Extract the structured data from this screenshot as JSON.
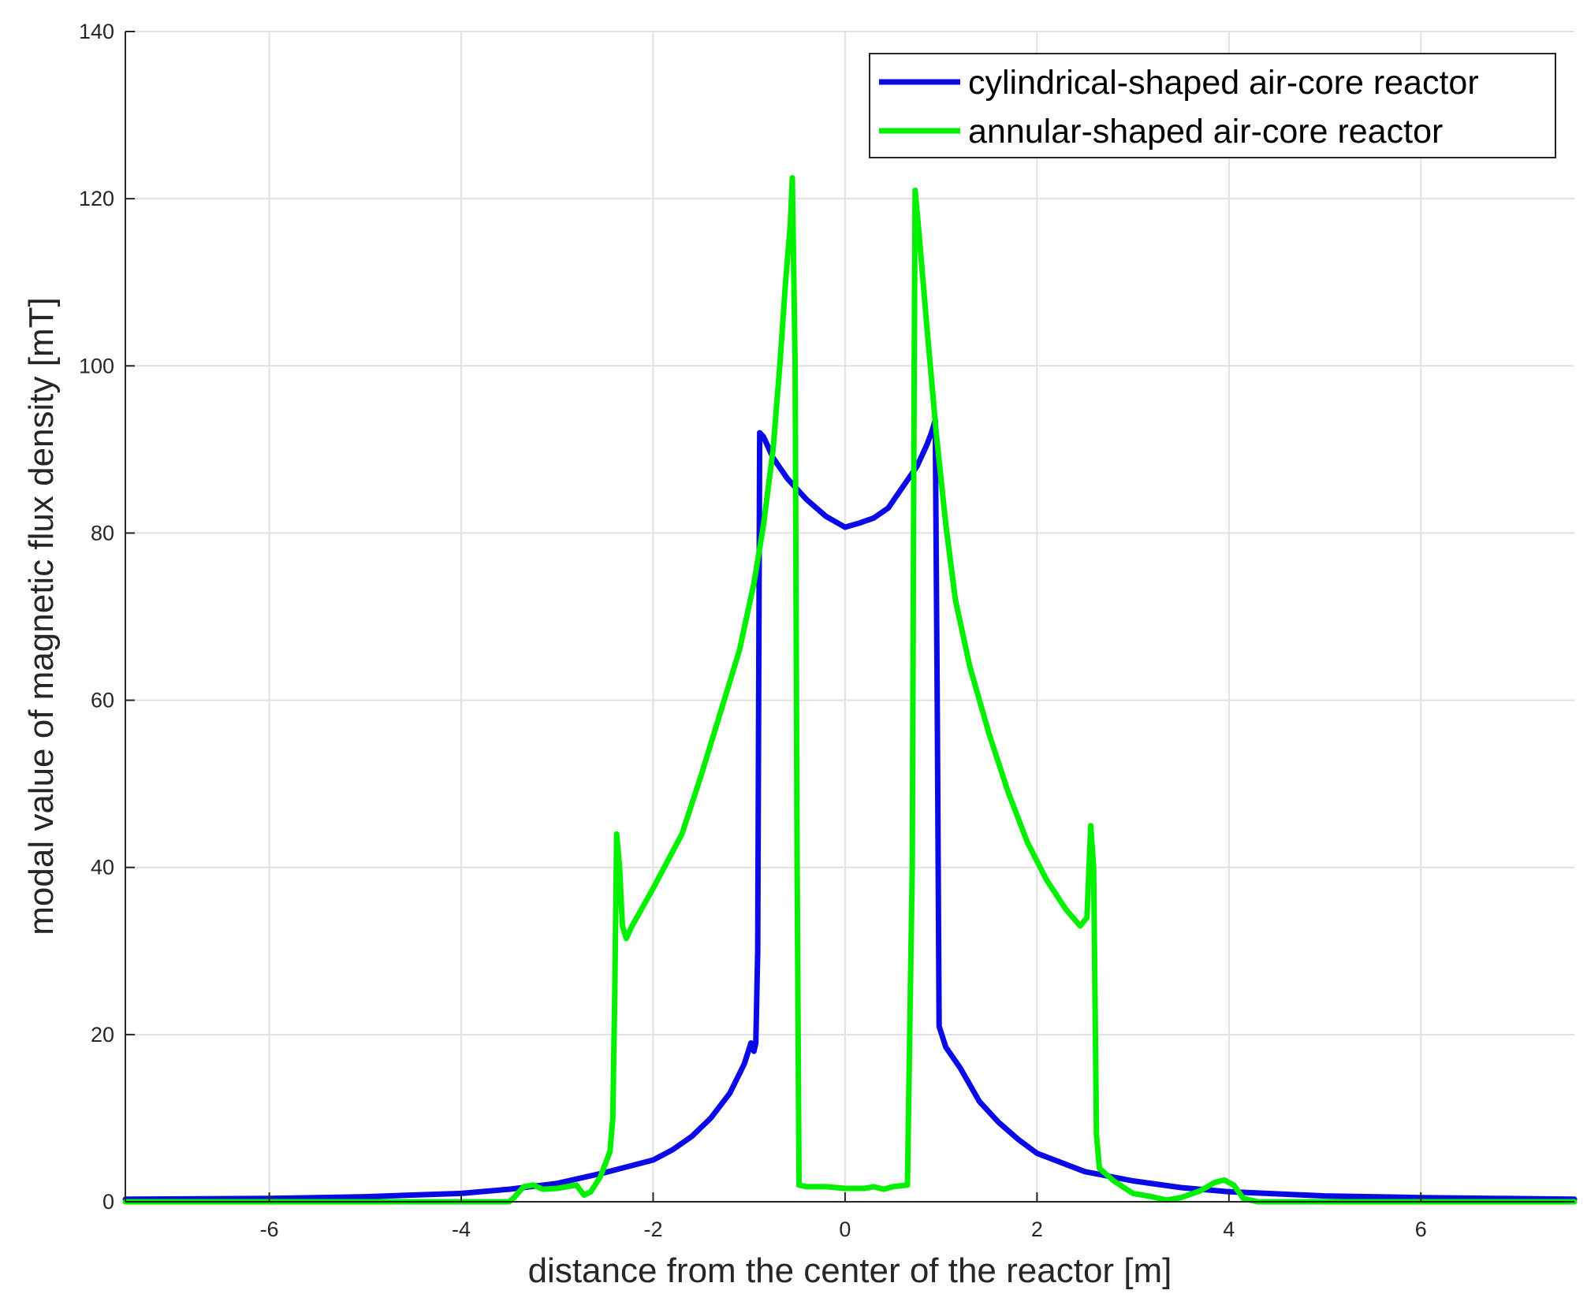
{
  "chart_data": {
    "type": "line",
    "xlabel": "distance from the center of the reactor [m]",
    "ylabel": "modal value of magnetic flux density [mT]",
    "xlim": [
      -7.5,
      7.6
    ],
    "ylim": [
      0,
      140
    ],
    "xticks": [
      -6,
      -4,
      -2,
      0,
      2,
      4,
      6
    ],
    "yticks": [
      0,
      20,
      40,
      60,
      80,
      100,
      120,
      140
    ],
    "grid": true,
    "legend_position": "top-right",
    "series": [
      {
        "name": "cylindrical-shaped air-core reactor",
        "color": "#0a0ae6",
        "points": [
          [
            -7.5,
            0.3
          ],
          [
            -6,
            0.4
          ],
          [
            -5,
            0.6
          ],
          [
            -4,
            1.0
          ],
          [
            -3.5,
            1.5
          ],
          [
            -3,
            2.2
          ],
          [
            -2.5,
            3.5
          ],
          [
            -2,
            5.0
          ],
          [
            -1.8,
            6.2
          ],
          [
            -1.6,
            7.8
          ],
          [
            -1.4,
            10.0
          ],
          [
            -1.2,
            13.0
          ],
          [
            -1.05,
            16.5
          ],
          [
            -0.98,
            19.0
          ],
          [
            -0.95,
            18.0
          ],
          [
            -0.93,
            19.0
          ],
          [
            -0.91,
            30.0
          ],
          [
            -0.89,
            92.0
          ],
          [
            -0.85,
            91.5
          ],
          [
            -0.75,
            89.0
          ],
          [
            -0.6,
            86.5
          ],
          [
            -0.4,
            84.0
          ],
          [
            -0.2,
            82.0
          ],
          [
            0,
            80.7
          ],
          [
            0.15,
            81.2
          ],
          [
            0.3,
            81.8
          ],
          [
            0.45,
            83.0
          ],
          [
            0.6,
            85.5
          ],
          [
            0.75,
            88.0
          ],
          [
            0.85,
            90.5
          ],
          [
            0.9,
            92.0
          ],
          [
            0.94,
            93.5
          ],
          [
            0.96,
            60.0
          ],
          [
            0.98,
            21.0
          ],
          [
            1.05,
            18.5
          ],
          [
            1.2,
            16.0
          ],
          [
            1.4,
            12.0
          ],
          [
            1.6,
            9.5
          ],
          [
            1.8,
            7.5
          ],
          [
            2,
            5.8
          ],
          [
            2.5,
            3.6
          ],
          [
            3,
            2.5
          ],
          [
            3.5,
            1.7
          ],
          [
            4,
            1.2
          ],
          [
            5,
            0.7
          ],
          [
            6,
            0.5
          ],
          [
            7.6,
            0.3
          ]
        ]
      },
      {
        "name": "annular-shaped air-core reactor",
        "color": "#00f000",
        "points": [
          [
            -7.5,
            0
          ],
          [
            -4,
            0
          ],
          [
            -3.5,
            0
          ],
          [
            -3.45,
            0.5
          ],
          [
            -3.35,
            1.8
          ],
          [
            -3.25,
            2.0
          ],
          [
            -3.15,
            1.5
          ],
          [
            -3.0,
            1.6
          ],
          [
            -2.8,
            2.0
          ],
          [
            -2.72,
            0.8
          ],
          [
            -2.65,
            1.2
          ],
          [
            -2.55,
            3.0
          ],
          [
            -2.45,
            6.0
          ],
          [
            -2.42,
            10.0
          ],
          [
            -2.4,
            25.0
          ],
          [
            -2.38,
            44.0
          ],
          [
            -2.35,
            40.0
          ],
          [
            -2.32,
            33.0
          ],
          [
            -2.28,
            31.5
          ],
          [
            -2.22,
            33.0
          ],
          [
            -2.0,
            37.5
          ],
          [
            -1.7,
            44.0
          ],
          [
            -1.5,
            51.0
          ],
          [
            -1.3,
            58.5
          ],
          [
            -1.1,
            66.0
          ],
          [
            -0.95,
            74.0
          ],
          [
            -0.85,
            81.0
          ],
          [
            -0.75,
            90.0
          ],
          [
            -0.68,
            100.0
          ],
          [
            -0.62,
            110.0
          ],
          [
            -0.57,
            117.0
          ],
          [
            -0.55,
            122.5
          ],
          [
            -0.52,
            100.0
          ],
          [
            -0.5,
            40.0
          ],
          [
            -0.48,
            2.0
          ],
          [
            -0.4,
            1.8
          ],
          [
            -0.2,
            1.8
          ],
          [
            0,
            1.6
          ],
          [
            0.2,
            1.6
          ],
          [
            0.3,
            1.8
          ],
          [
            0.4,
            1.5
          ],
          [
            0.5,
            1.8
          ],
          [
            0.65,
            2.0
          ],
          [
            0.7,
            40.0
          ],
          [
            0.72,
            100.0
          ],
          [
            0.73,
            121.0
          ],
          [
            0.77,
            116.0
          ],
          [
            0.85,
            105.0
          ],
          [
            0.95,
            92.0
          ],
          [
            1.05,
            81.0
          ],
          [
            1.15,
            72.0
          ],
          [
            1.3,
            64.0
          ],
          [
            1.5,
            56.0
          ],
          [
            1.7,
            49.0
          ],
          [
            1.9,
            43.0
          ],
          [
            2.1,
            38.5
          ],
          [
            2.3,
            35.0
          ],
          [
            2.45,
            33.0
          ],
          [
            2.52,
            34.0
          ],
          [
            2.56,
            45.0
          ],
          [
            2.59,
            40.0
          ],
          [
            2.62,
            8.0
          ],
          [
            2.65,
            4.0
          ],
          [
            2.8,
            2.5
          ],
          [
            3.0,
            1.0
          ],
          [
            3.2,
            0.6
          ],
          [
            3.35,
            0.2
          ],
          [
            3.5,
            0.5
          ],
          [
            3.7,
            1.3
          ],
          [
            3.85,
            2.3
          ],
          [
            3.95,
            2.6
          ],
          [
            4.05,
            2.0
          ],
          [
            4.15,
            0.4
          ],
          [
            4.3,
            0
          ],
          [
            7.6,
            0
          ]
        ]
      }
    ]
  }
}
